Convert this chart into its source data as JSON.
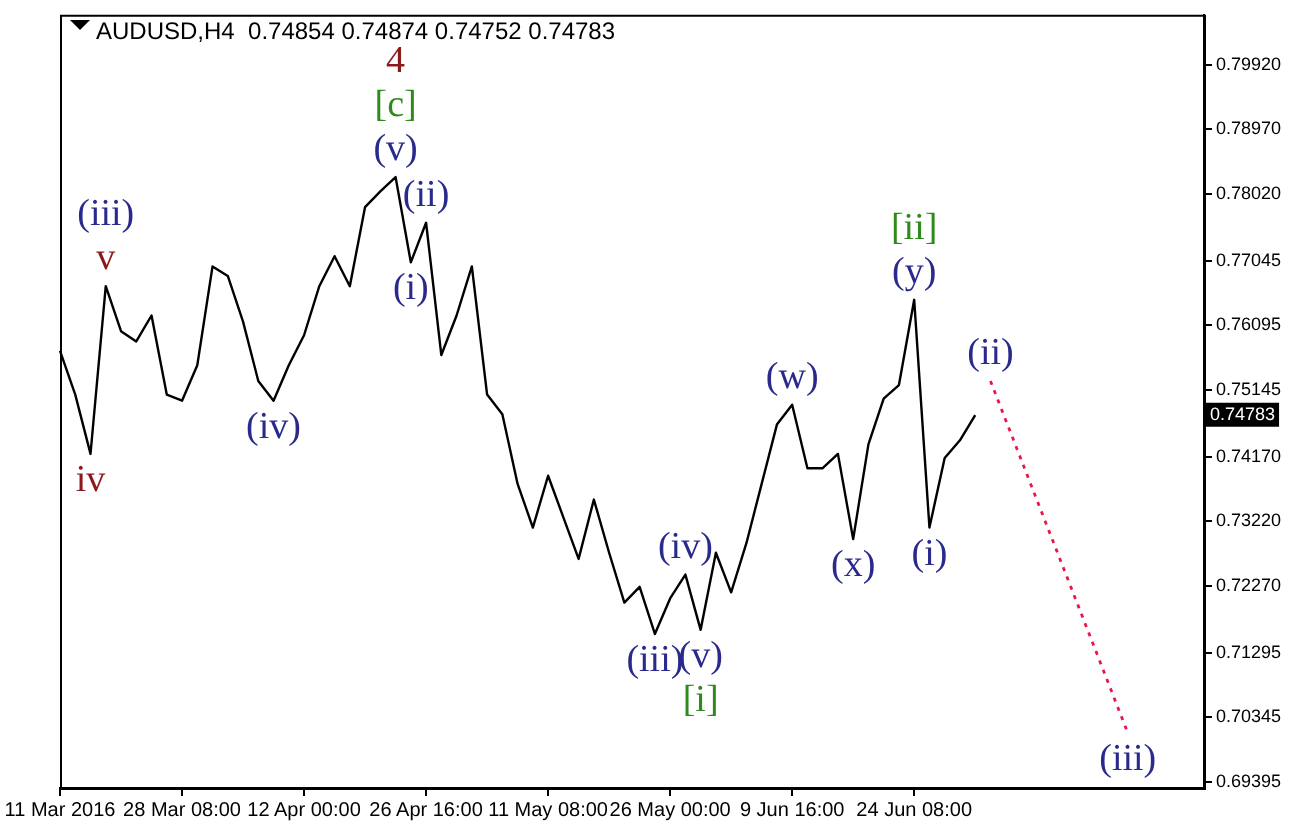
{
  "chart_data": {
    "type": "line",
    "title": "AUDUSD,H4  0.74854 0.74874 0.74752 0.74783",
    "categories": [
      "11 Mar 2016",
      null,
      null,
      null,
      null,
      null,
      null,
      null,
      "28 Mar 08:00",
      null,
      null,
      null,
      null,
      null,
      null,
      null,
      "12 Apr 00:00",
      null,
      null,
      null,
      null,
      null,
      null,
      null,
      "26 Apr 16:00",
      null,
      null,
      null,
      null,
      null,
      null,
      null,
      "11 May 08:00",
      null,
      null,
      null,
      null,
      null,
      null,
      null,
      "26 May 00:00",
      null,
      null,
      null,
      null,
      null,
      null,
      null,
      "9 Jun 16:00",
      null,
      null,
      null,
      null,
      null,
      null,
      null,
      "24 Jun 08:00",
      null,
      null,
      null,
      null,
      null,
      null,
      null,
      null,
      null,
      null,
      null,
      null,
      null,
      null,
      null,
      null,
      null,
      null,
      null
    ],
    "series": [
      {
        "color": "#000000",
        "line_style": "solid",
        "values": [
          0.7572,
          0.7508,
          0.7421,
          0.7667,
          0.7601,
          0.7586,
          0.7624,
          0.7508,
          0.7499,
          0.7551,
          0.7696,
          0.7682,
          0.7615,
          0.7528,
          0.7499,
          0.7551,
          0.7595,
          0.7667,
          0.7711,
          0.7667,
          0.7783,
          0.7806,
          0.7827,
          0.7702,
          0.776,
          0.7566,
          0.7624,
          0.7696,
          0.7508,
          0.7479,
          0.7377,
          0.7313,
          0.7389,
          0.7328,
          0.7267,
          0.7354,
          0.7276,
          0.7203,
          0.7226,
          0.7157,
          0.7209,
          0.7244,
          0.7163,
          0.7276,
          0.7218,
          0.729,
          0.7377,
          0.7464,
          0.7493,
          0.74,
          0.74,
          0.7421,
          0.7296,
          0.7435,
          0.7502,
          0.7522,
          0.7647,
          0.7313,
          0.7415,
          0.7441,
          0.7478,
          null,
          null,
          null,
          null,
          null,
          null,
          null,
          null,
          null,
          null,
          null,
          null,
          null,
          null,
          null
        ]
      },
      {
        "color": "#e8174a",
        "line_style": "dotted",
        "values": [
          null,
          null,
          null,
          null,
          null,
          null,
          null,
          null,
          null,
          null,
          null,
          null,
          null,
          null,
          null,
          null,
          null,
          null,
          null,
          null,
          null,
          null,
          null,
          null,
          null,
          null,
          null,
          null,
          null,
          null,
          null,
          null,
          null,
          null,
          null,
          null,
          null,
          null,
          null,
          null,
          null,
          null,
          null,
          null,
          null,
          null,
          null,
          null,
          null,
          null,
          null,
          null,
          null,
          null,
          null,
          null,
          null,
          null,
          null,
          null,
          null,
          0.7528,
          null,
          null,
          null,
          null,
          null,
          null,
          null,
          null,
          0.7012,
          null,
          null,
          null,
          null,
          null
        ]
      }
    ],
    "annotations": [
      "iv",
      "(iii)",
      "v",
      "(iv)",
      "4",
      "[c]",
      "(v)",
      "(i)",
      "(ii)",
      "(iii)",
      "(iv)",
      "(v)",
      "[i]",
      "(w)",
      "(x)",
      "[ii]",
      "(y)",
      "(i)",
      "(ii)",
      "(iii)",
      {
        "text": "0.74783",
        "y": 0.74783
      }
    ],
    "ylim": [
      0.6931,
      0.8065
    ],
    "yticks": [
      {
        "value": 0.7992,
        "label": "0.79920"
      },
      {
        "value": 0.7897,
        "label": "0.78970"
      },
      {
        "value": 0.7802,
        "label": "0.78020"
      },
      0.77045,
      0.76095,
      0.75145,
      {
        "value": 0.7417,
        "label": "0.74170"
      },
      {
        "value": 0.7322,
        "label": "0.73220"
      },
      {
        "value": 0.7227,
        "label": "0.72270"
      },
      0.71295,
      0.70345,
      0.69395
    ],
    "grid": false,
    "legend": false
  }
}
